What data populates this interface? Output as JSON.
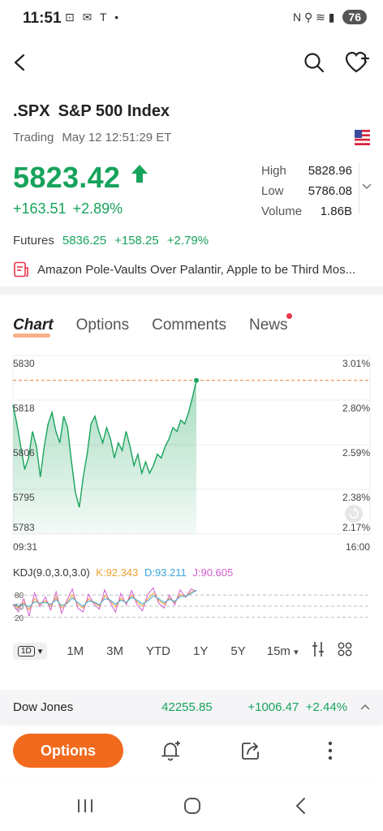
{
  "status_bar": {
    "time": "11:51",
    "left_icons": "⊡ ✉ T •",
    "right_icons": "N ⚲ ≋ ▮",
    "battery": "76"
  },
  "header": {
    "back_icon": "back-arrow-icon",
    "search_icon": "search-icon",
    "watchlist_icon": "heart-plus-icon"
  },
  "quote": {
    "symbol": ".SPX",
    "name": "S&P 500 Index",
    "status": "Trading",
    "timestamp": "May 12 12:51:29 ET",
    "price": "5823.42",
    "change": "+163.51",
    "change_pct": "+2.89%",
    "high_label": "High",
    "high": "5828.96",
    "low_label": "Low",
    "low": "5786.08",
    "volume_label": "Volume",
    "volume": "1.86B",
    "up_color": "#17a35b"
  },
  "futures": {
    "label": "Futures",
    "price": "5836.25",
    "change": "+158.25",
    "change_pct": "+2.79%"
  },
  "news_banner": {
    "text": "Amazon Pole-Vaults Over Palantir, Apple to be Third Mos..."
  },
  "tabs": [
    {
      "label": "Chart"
    },
    {
      "label": "Options"
    },
    {
      "label": "Comments"
    },
    {
      "label": "News"
    }
  ],
  "chart_data": {
    "type": "area",
    "y_ticks_left": [
      "5830",
      "5818",
      "5806",
      "5795",
      "5783"
    ],
    "y_ticks_right": [
      "3.01%",
      "2.80%",
      "2.59%",
      "2.38%",
      "2.17%"
    ],
    "x_ticks": [
      "09:31",
      "16:00"
    ],
    "ylim": [
      5783,
      5830
    ],
    "reference_price": 5823.42,
    "values": [
      5817,
      5812,
      5806,
      5800,
      5803,
      5810,
      5806,
      5798,
      5806,
      5812,
      5815,
      5810,
      5807,
      5814,
      5811,
      5802,
      5794,
      5790,
      5798,
      5804,
      5812,
      5814,
      5810,
      5807,
      5811,
      5808,
      5803,
      5807,
      5805,
      5810,
      5806,
      5801,
      5804,
      5799,
      5802,
      5799,
      5801,
      5804,
      5803,
      5806,
      5808,
      5811,
      5810,
      5813,
      5812,
      5815,
      5819,
      5823.42
    ],
    "line_color": "#17a35b"
  },
  "kdj": {
    "label": "KDJ(9.0,3.0,3.0)",
    "k": "K:92.343",
    "d": "D:93.211",
    "j": "J:90.605",
    "k_color": "#f0a030",
    "d_color": "#3aa6d9",
    "j_color": "#d45bd0",
    "levels": [
      "80",
      "50",
      "20"
    ],
    "k_values": [
      55,
      45,
      60,
      40,
      70,
      55,
      65,
      50,
      75,
      45,
      60,
      80,
      55,
      45,
      70,
      60,
      50,
      78,
      65,
      48,
      72,
      58,
      80,
      62,
      50,
      70,
      85,
      66,
      55,
      72,
      60,
      82,
      75,
      88,
      92
    ],
    "d_values": [
      55,
      50,
      55,
      48,
      62,
      58,
      60,
      55,
      68,
      52,
      57,
      72,
      60,
      50,
      64,
      62,
      54,
      70,
      67,
      55,
      66,
      60,
      74,
      66,
      56,
      64,
      78,
      70,
      60,
      68,
      63,
      76,
      76,
      84,
      93
    ],
    "j_values": [
      55,
      35,
      70,
      24,
      86,
      49,
      75,
      40,
      89,
      31,
      66,
      96,
      45,
      35,
      82,
      56,
      42,
      94,
      61,
      34,
      84,
      54,
      92,
      54,
      38,
      82,
      99,
      58,
      45,
      80,
      54,
      94,
      73,
      96,
      90
    ]
  },
  "periods": {
    "selected": "1D",
    "items": [
      "1M",
      "3M",
      "YTD",
      "1Y",
      "5Y"
    ],
    "interval": "15m"
  },
  "index_bar": {
    "name": "Dow Jones",
    "price": "42255.85",
    "change": "+1006.47",
    "change_pct": "+2.44%"
  },
  "toolbar": {
    "options_label": "Options"
  }
}
